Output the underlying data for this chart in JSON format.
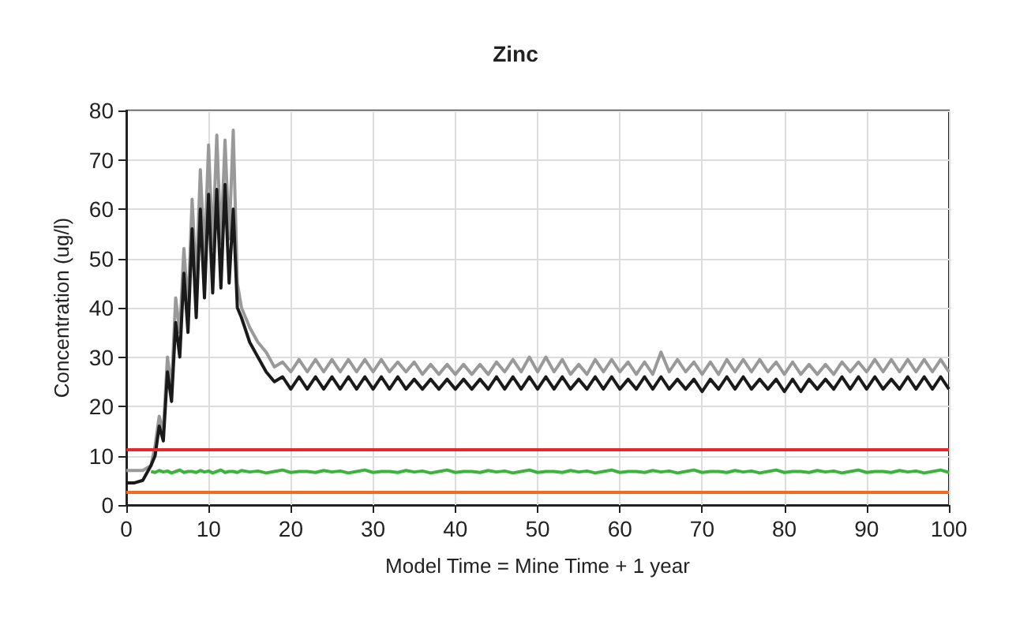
{
  "chart_data": {
    "type": "line",
    "title": "Zinc",
    "xlabel": "Model Time = Mine Time + 1 year",
    "ylabel": "Concentration (ug/l)",
    "xlim": [
      0,
      100
    ],
    "xticks": [
      0,
      10,
      20,
      30,
      40,
      50,
      60,
      70,
      80,
      90,
      100
    ],
    "ylim": [
      0,
      80
    ],
    "yticks": [
      0,
      10,
      20,
      30,
      40,
      50,
      60,
      70,
      80
    ],
    "grid": true,
    "marker": "none",
    "line_style": "solid",
    "x": [
      0,
      1,
      2,
      3,
      3.5,
      4,
      4.5,
      5,
      5.5,
      6,
      6.5,
      7,
      7.5,
      8,
      8.5,
      9,
      9.5,
      10,
      10.5,
      11,
      11.5,
      12,
      12.5,
      13,
      13.5,
      14,
      15,
      16,
      17,
      18,
      19,
      20,
      21,
      22,
      23,
      24,
      25,
      26,
      27,
      28,
      29,
      30,
      31,
      32,
      33,
      34,
      35,
      36,
      37,
      38,
      39,
      40,
      41,
      42,
      43,
      44,
      45,
      46,
      47,
      48,
      49,
      50,
      51,
      52,
      53,
      54,
      55,
      56,
      57,
      58,
      59,
      60,
      61,
      62,
      63,
      64,
      65,
      66,
      67,
      68,
      69,
      70,
      71,
      72,
      73,
      74,
      75,
      76,
      77,
      78,
      79,
      80,
      81,
      82,
      83,
      84,
      85,
      86,
      87,
      88,
      89,
      90,
      91,
      92,
      93,
      94,
      95,
      96,
      97,
      98,
      99,
      100
    ],
    "series": [
      {
        "color": "#999999",
        "values": [
          7,
          7,
          7,
          8,
          12,
          18,
          15,
          30,
          24,
          42,
          35,
          52,
          40,
          62,
          45,
          68,
          50,
          73,
          52,
          75,
          53,
          74,
          54,
          76,
          45,
          40,
          36,
          33,
          31,
          28,
          29,
          27,
          29.5,
          27,
          29.5,
          27,
          29.5,
          27,
          29.5,
          27,
          29.5,
          27,
          29.5,
          27,
          29,
          27,
          29,
          26.5,
          28.5,
          26.5,
          28.5,
          26.5,
          28.5,
          26.5,
          28.5,
          26.5,
          29,
          27,
          29.5,
          27,
          30,
          27,
          30,
          27,
          29.5,
          26.5,
          28.5,
          26.5,
          29.5,
          27,
          29.5,
          27,
          29,
          26.5,
          29,
          26.5,
          31,
          27,
          29.5,
          27,
          29,
          26.5,
          29,
          26.5,
          29.5,
          27,
          29.5,
          27,
          29.5,
          27,
          29,
          26.5,
          29,
          26.5,
          28.5,
          26.5,
          28.5,
          26.5,
          29,
          27,
          29,
          27,
          29.5,
          27,
          29.5,
          27,
          29.5,
          27,
          29.5,
          27,
          29.5,
          27
        ]
      },
      {
        "color": "#1a1a1a",
        "values": [
          4.5,
          4.5,
          5,
          8,
          10,
          16,
          13,
          27,
          21,
          37,
          30,
          47,
          35,
          56,
          38,
          60,
          42,
          63,
          43,
          64,
          44,
          65,
          45,
          60,
          40,
          38,
          33,
          30,
          27,
          25,
          26,
          23.5,
          26,
          23.5,
          26,
          23.5,
          26,
          23.5,
          26,
          23.5,
          26,
          23.5,
          26,
          23.5,
          26,
          23.5,
          25.5,
          23.5,
          25.5,
          23.5,
          25.5,
          23.5,
          25.5,
          23.5,
          25.5,
          23.5,
          26,
          23.5,
          26,
          23.5,
          26,
          23.5,
          26,
          23.5,
          26,
          23.5,
          25.5,
          23.5,
          26,
          23.5,
          26,
          23.5,
          25.5,
          23.5,
          26,
          23.5,
          26,
          23.5,
          25.5,
          23.5,
          25.5,
          23,
          25.5,
          23.5,
          26,
          23.5,
          26,
          23.5,
          25.5,
          23.5,
          25.5,
          23,
          25.5,
          23,
          25.5,
          23.5,
          25.5,
          23.5,
          26,
          23.5,
          26,
          23.5,
          26,
          23.5,
          25.5,
          23.5,
          26,
          23.5,
          26,
          23.5,
          26,
          23.5
        ]
      },
      {
        "color": "#3cb33c",
        "values": [
          null,
          null,
          null,
          6.8,
          6.6,
          7.0,
          6.7,
          6.9,
          6.5,
          6.8,
          7.1,
          6.6,
          6.8,
          6.8,
          6.6,
          7.0,
          6.7,
          6.9,
          6.5,
          6.8,
          7.1,
          6.6,
          6.8,
          6.8,
          6.6,
          7.0,
          6.7,
          6.9,
          6.5,
          6.8,
          7.1,
          6.6,
          6.8,
          6.8,
          6.6,
          7.0,
          6.7,
          6.9,
          6.5,
          6.8,
          7.1,
          6.6,
          6.8,
          6.8,
          6.6,
          7.0,
          6.7,
          6.9,
          6.5,
          6.8,
          7.1,
          6.6,
          6.8,
          6.8,
          6.6,
          7.0,
          6.7,
          6.9,
          6.5,
          6.8,
          7.1,
          6.6,
          6.8,
          6.8,
          6.6,
          7.0,
          6.7,
          6.9,
          6.5,
          6.8,
          7.1,
          6.6,
          6.8,
          6.8,
          6.6,
          7.0,
          6.7,
          6.9,
          6.5,
          6.8,
          7.1,
          6.6,
          6.8,
          6.8,
          6.6,
          7.0,
          6.7,
          6.9,
          6.5,
          6.8,
          7.1,
          6.6,
          6.8,
          6.8,
          6.6,
          7.0,
          6.7,
          6.9,
          6.5,
          6.8,
          7.1,
          6.6,
          6.8,
          6.8,
          6.6,
          7.0,
          6.7,
          6.9,
          6.5,
          6.8,
          7.1,
          6.6
        ]
      }
    ],
    "ref_lines": [
      {
        "axis": "y",
        "value": 11.3,
        "color": "#e8262a"
      },
      {
        "axis": "y",
        "value": 2.5,
        "color": "#f26b21"
      }
    ]
  }
}
